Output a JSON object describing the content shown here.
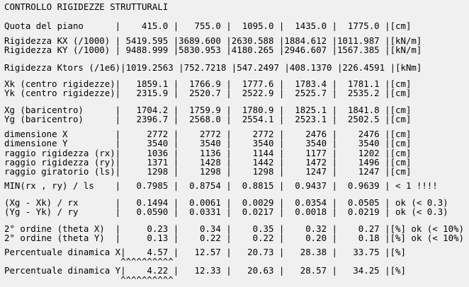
{
  "title": "CONTROLLO RIGIDEZZE STRUTTURALI",
  "blocks": [
    [
      "Quota del piano      |    415.0 |   755.0 |  1095.0 |  1435.0 |  1775.0 |[cm]"
    ],
    [
      "Rigidezza KX (/1000) | 5419.595 |3689.600 |2630.588 |1884.612 |1011.987 |[kN/m]",
      "Rigidezza KY (/1000) | 9488.999 |5830.953 |4180.265 |2946.607 |1567.385 |[kN/m]"
    ],
    [
      "Rigidezza Ktors (/1e6)|1019.2563 |752.7218 |547.2497 |408.1370 |226.4591 |[kNm]"
    ],
    [
      "Xk (centro rigidezze)|   1859.1 |  1766.9 |  1777.6 |  1783.4 |  1781.1 |[cm]",
      "Yk (centro rigidezze)|   2315.9 |  2520.7 |  2522.9 |  2525.7 |  2535.2 |[cm]"
    ],
    [
      "Xg (baricentro)      |   1704.2 |  1759.9 |  1780.9 |  1825.1 |  1841.8 |[cm]",
      "Yg (baricentro)      |   2396.7 |  2568.0 |  2554.1 |  2523.1 |  2502.5 |[cm]"
    ],
    [
      "dimensione X         |     2772 |    2772 |    2772 |    2476 |    2476 |[cm]",
      "dimensione Y         |     3540 |    3540 |    3540 |    3540 |    3540 |[cm]",
      "raggio rigidezza (rx)|     1036 |    1136 |    1144 |    1177 |    1202 |[cm]",
      "raggio rigidezza (ry)|     1371 |    1428 |    1442 |    1472 |    1496 |[cm]",
      "raggio giratorio (ls)|     1298 |    1298 |    1298 |    1247 |    1247 |[cm]"
    ],
    [
      "MIN(rx , ry) / ls    |   0.7985 |  0.8754 |  0.8815 |  0.9437 |  0.9639 | < 1 !!!!"
    ],
    [
      "(Xg - Xk) / rx       |   0.1494 |  0.0061 |  0.0029 |  0.0354 |  0.0505 | ok (< 0.3)",
      "(Yg - Yk) / ry       |   0.0590 |  0.0331 |  0.0217 |  0.0018 |  0.0219 | ok (< 0.3)"
    ],
    [
      "2° ordine (theta X)  |     0.23 |    0.34 |    0.35 |    0.32 |    0.27 |[%] ok (< 10%)",
      "2° ordine (theta Y)  |     0.13 |    0.22 |    0.22 |    0.20 |    0.18 |[%] ok (< 10%)"
    ],
    [
      "Percentuale dinamica X|    4.57 |   12.57 |   20.73 |   28.38 |   33.75 |[%]",
      "                      ^^^^^^^^^^"
    ],
    [
      "Percentuale dinamica Y|    4.22 |   12.33 |   20.63 |   28.57 |   34.25 |[%]",
      "                      ^^^^^^^^^^"
    ]
  ]
}
